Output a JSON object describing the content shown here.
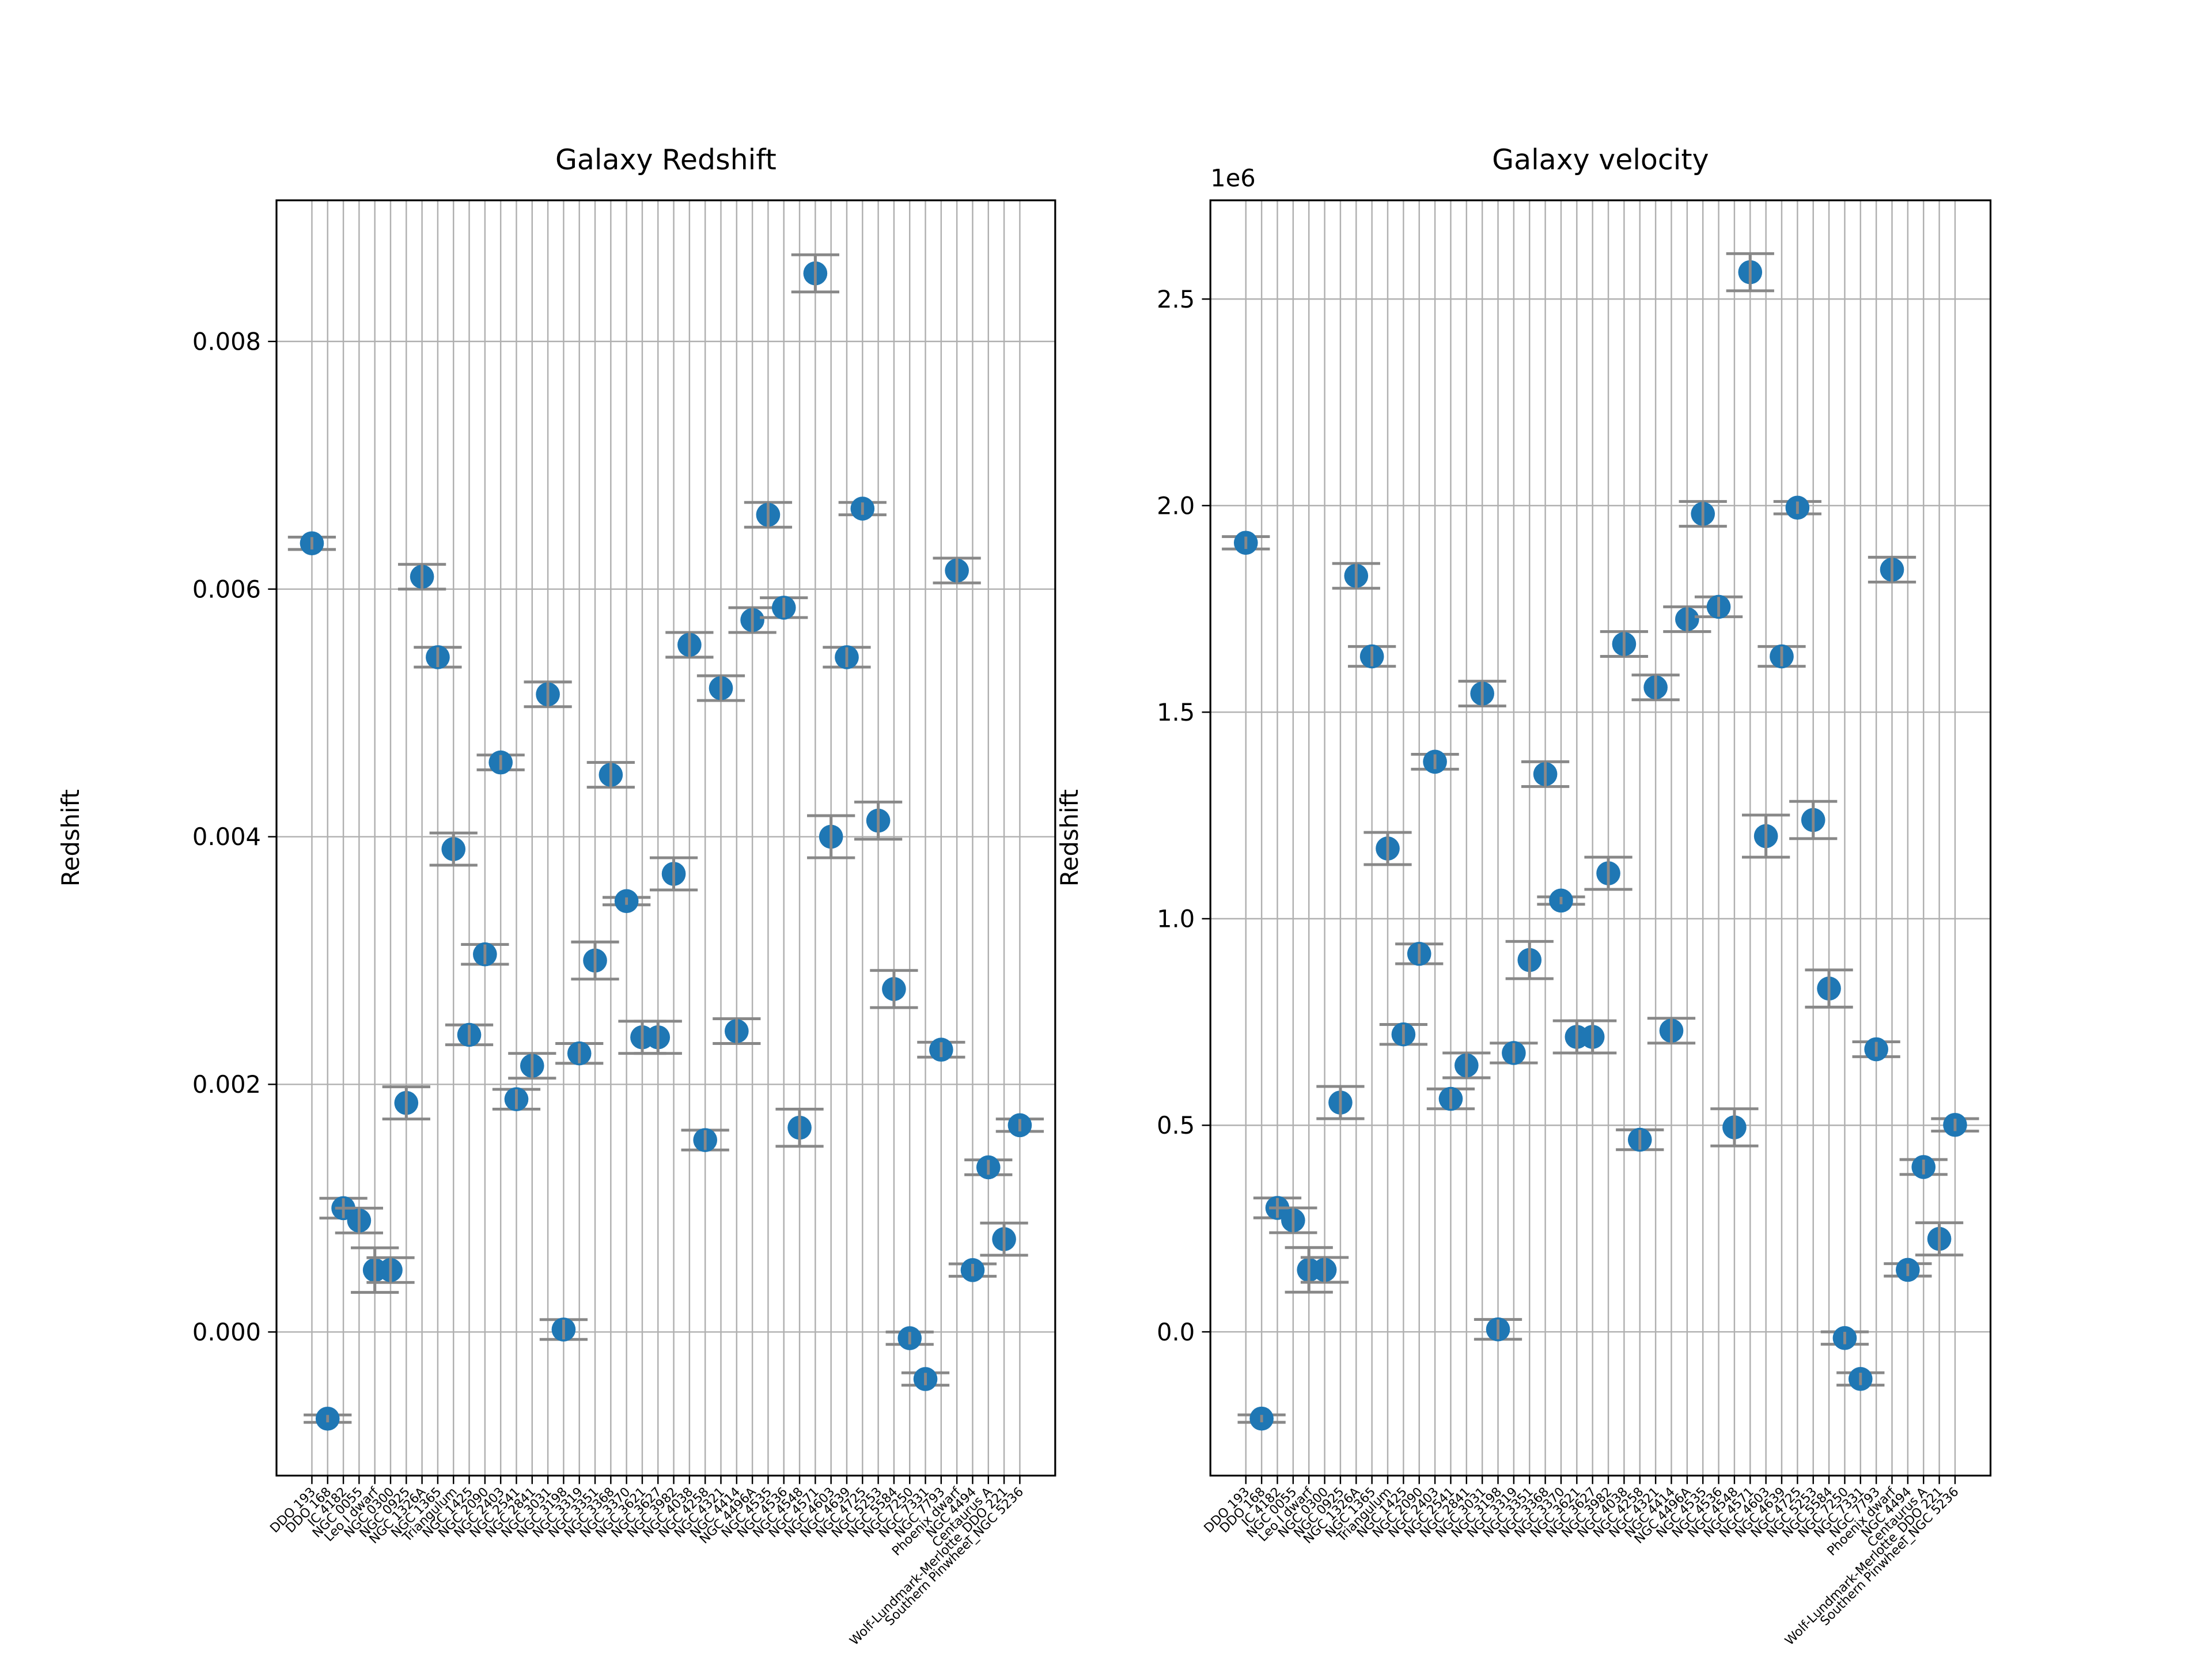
{
  "chart_data": [
    {
      "type": "errorbar",
      "title": "Galaxy Redshift",
      "ylabel": "Redshift",
      "color": "#1f77b4",
      "error_color": "#888888",
      "grid": true,
      "categories": [
        "DDO 193",
        "DDO 168",
        "IC 4182",
        "NGC 0055",
        "Leo I dwarf",
        "NGC 0300",
        "NGC 0925",
        "NGC 1326A",
        "NGC 1365",
        "Triangulum",
        "NGC 1425",
        "NGC 2090",
        "NGC 2403",
        "NGC 2541",
        "NGC 2841",
        "NGC 3031",
        "NGC 3198",
        "NGC 3319",
        "NGC 3351",
        "NGC 3368",
        "NGC 3370",
        "NGC 3621",
        "NGC 3627",
        "NGC 3982",
        "NGC 4038",
        "NGC 4258",
        "NGC 4321",
        "NGC 4414",
        "NGC 4496A",
        "NGC 4535",
        "NGC 4536",
        "NGC 4548",
        "NGC 4571",
        "NGC 4603",
        "NGC 4639",
        "NGC 4725",
        "NGC 5253",
        "NGC 5584",
        "NGC 7250",
        "NGC 7331",
        "NGC 7793",
        "Phoenix dwarf",
        "NGC 4494",
        "Centaurus A",
        "Wolf-Lundmark-Merlotte_DDO 221",
        "Southern Pinwheel_NGC 5236"
      ],
      "values": [
        0.00637,
        -0.0007,
        0.001,
        0.0009,
        0.0005,
        0.0005,
        0.00185,
        0.0061,
        0.00545,
        0.0039,
        0.0024,
        0.00305,
        0.0046,
        0.00188,
        0.00215,
        0.00515,
        2e-05,
        0.00225,
        0.003,
        0.0045,
        0.00348,
        0.00238,
        0.00238,
        0.0037,
        0.00555,
        0.00155,
        0.0052,
        0.00243,
        0.00575,
        0.0066,
        0.00585,
        0.00165,
        0.00855,
        0.004,
        0.00545,
        0.00665,
        0.00413,
        0.00277,
        -5e-05,
        -0.00038,
        0.00228,
        0.00615,
        0.0005,
        0.00133,
        0.00075,
        0.00167
      ],
      "errors": [
        5e-05,
        3e-05,
        8e-05,
        0.0001,
        0.00018,
        0.0001,
        0.00013,
        0.0001,
        8e-05,
        0.00013,
        8e-05,
        8e-05,
        6e-05,
        8e-05,
        0.0001,
        0.0001,
        8e-05,
        8e-05,
        0.00015,
        0.0001,
        3e-05,
        0.00013,
        0.00013,
        0.00013,
        0.0001,
        8e-05,
        0.0001,
        0.0001,
        0.0001,
        0.0001,
        8e-05,
        0.00015,
        0.00015,
        0.00017,
        8e-05,
        5e-05,
        0.00015,
        0.00015,
        5e-05,
        5e-05,
        6e-05,
        0.0001,
        5e-05,
        6e-05,
        0.00013,
        5e-05
      ],
      "ylim": [
        -0.00116,
        0.00914
      ],
      "yticks": [
        {
          "value": 0,
          "label": "0.000"
        },
        {
          "value": 0.002,
          "label": "0.002"
        },
        {
          "value": 0.004,
          "label": "0.004"
        },
        {
          "value": 0.006,
          "label": "0.006"
        },
        {
          "value": 0.008,
          "label": "0.008"
        }
      ]
    },
    {
      "type": "errorbar",
      "title": "Galaxy velocity",
      "ylabel": "Redshift",
      "offset_label": "1e6",
      "color": "#1f77b4",
      "error_color": "#888888",
      "grid": true,
      "categories": [
        "DDO 193",
        "DDO 168",
        "IC 4182",
        "NGC 0055",
        "Leo I dwarf",
        "NGC 0300",
        "NGC 0925",
        "NGC 1326A",
        "NGC 1365",
        "Triangulum",
        "NGC 1425",
        "NGC 2090",
        "NGC 2403",
        "NGC 2541",
        "NGC 2841",
        "NGC 3031",
        "NGC 3198",
        "NGC 3319",
        "NGC 3351",
        "NGC 3368",
        "NGC 3370",
        "NGC 3621",
        "NGC 3627",
        "NGC 3982",
        "NGC 4038",
        "NGC 4258",
        "NGC 4321",
        "NGC 4414",
        "NGC 4496A",
        "NGC 4535",
        "NGC 4536",
        "NGC 4548",
        "NGC 4571",
        "NGC 4603",
        "NGC 4639",
        "NGC 4725",
        "NGC 5253",
        "NGC 5584",
        "NGC 7250",
        "NGC 7331",
        "NGC 7793",
        "Phoenix dwarf",
        "NGC 4494",
        "Centaurus A",
        "Wolf-Lundmark-Merlotte_DDO 221",
        "Southern Pinwheel_NGC 5236"
      ],
      "values": [
        1910000,
        -210000,
        300000,
        270000,
        150000,
        150000,
        555000,
        1830000,
        1635000,
        1170000,
        720000,
        915000,
        1380000,
        564000,
        645000,
        1545000,
        6000,
        675000,
        900000,
        1350000,
        1044000,
        714000,
        714000,
        1110000,
        1665000,
        465000,
        1560000,
        729000,
        1725000,
        1980000,
        1755000,
        495000,
        2565000,
        1200000,
        1635000,
        1995000,
        1239000,
        831000,
        -15000,
        -114000,
        684000,
        1845000,
        150000,
        399000,
        225000,
        501000
      ],
      "errors": [
        15000,
        9000,
        24000,
        30000,
        54000,
        30000,
        39000,
        30000,
        24000,
        39000,
        24000,
        24000,
        18000,
        24000,
        30000,
        30000,
        24000,
        24000,
        45000,
        30000,
        9000,
        39000,
        39000,
        39000,
        30000,
        24000,
        30000,
        30000,
        30000,
        30000,
        24000,
        45000,
        45000,
        51000,
        24000,
        15000,
        45000,
        45000,
        15000,
        15000,
        18000,
        30000,
        15000,
        18000,
        39000,
        15000
      ],
      "ylim": [
        -348000,
        2739000
      ],
      "yticks": [
        {
          "value": 0,
          "label": "0.0"
        },
        {
          "value": 500000,
          "label": "0.5"
        },
        {
          "value": 1000000,
          "label": "1.0"
        },
        {
          "value": 1500000,
          "label": "1.5"
        },
        {
          "value": 2000000,
          "label": "2.0"
        },
        {
          "value": 2500000,
          "label": "2.5"
        }
      ]
    }
  ]
}
